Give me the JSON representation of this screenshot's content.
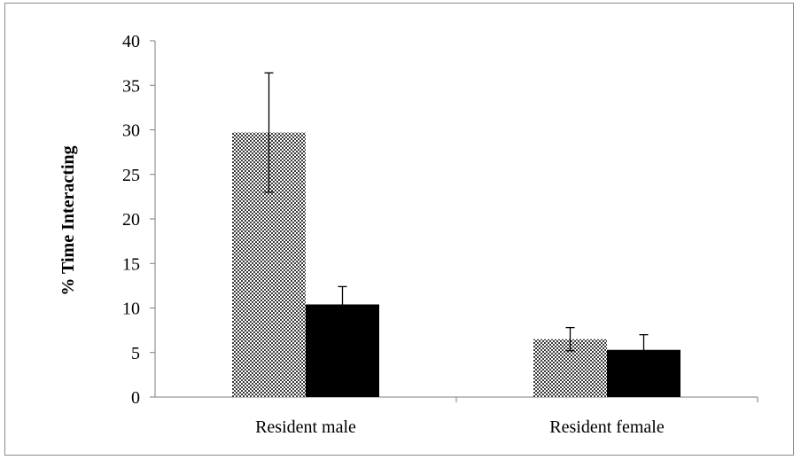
{
  "chart_data": {
    "type": "bar",
    "title": "",
    "xlabel": "",
    "ylabel": "% Time Interacting",
    "ylim": [
      0,
      40
    ],
    "yticks": [
      0,
      5,
      10,
      15,
      20,
      25,
      30,
      35,
      40
    ],
    "categories": [
      "Resident male",
      "Resident female"
    ],
    "series": [
      {
        "values": [
          29.7,
          6.5
        ],
        "error": [
          6.7,
          1.3
        ],
        "fill": "checkered",
        "color": "#555555"
      },
      {
        "values": [
          10.4,
          5.3
        ],
        "error": [
          2.0,
          1.7
        ],
        "fill": "solid",
        "color": "#000000"
      }
    ],
    "grid": false,
    "legend": "none"
  }
}
